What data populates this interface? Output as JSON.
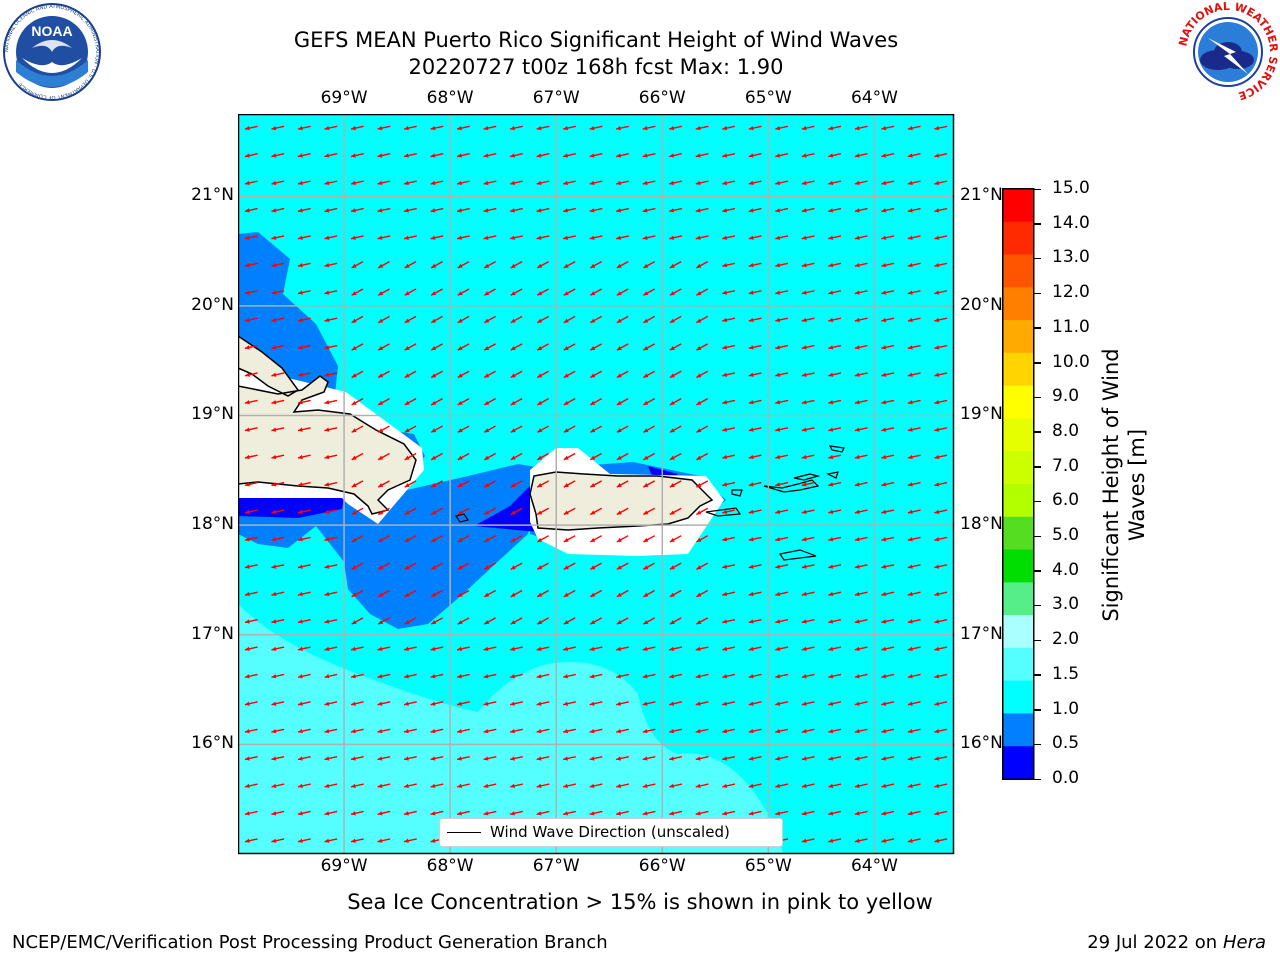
{
  "title": {
    "line1": "GEFS MEAN Puerto Rico Significant Height of Wind Waves",
    "line2": "20220727 t00z 168h fcst   Max: 1.90"
  },
  "logos": {
    "noaa_text": "NOAA",
    "noaa_ring_text": "NATIONAL OCEANIC AND ATMOSPHERIC ADMINISTRATION · U.S. DEPARTMENT OF COMMERCE",
    "nws_ring_text": "NATIONAL WEATHER SERVICE"
  },
  "map": {
    "lon_ticks": [
      "69°W",
      "68°W",
      "67°W",
      "66°W",
      "65°W",
      "64°W"
    ],
    "lat_ticks": [
      "21°N",
      "20°N",
      "19°N",
      "18°N",
      "17°N",
      "16°N"
    ],
    "lon_range": [
      -70,
      -63.25
    ],
    "lat_range": [
      15.0,
      21.75
    ],
    "grid": true,
    "arrow_direction": "pointing west-southwest (easterly wind waves)",
    "arrow_color": "#ff0000",
    "land_color": "#efeddc",
    "max_value": 1.9
  },
  "legend": {
    "label": "Wind Wave Direction (unscaled)",
    "placement": "bottom-center"
  },
  "colorbar": {
    "label": "Significant Height of Wind Waves [m]",
    "label_line1": "Significant Height of Wind",
    "label_line2": "Waves [m]",
    "ticks": [
      "15.0",
      "14.0",
      "13.0",
      "12.0",
      "11.0",
      "10.0",
      "9.0",
      "8.0",
      "7.0",
      "6.0",
      "5.0",
      "4.0",
      "3.0",
      "2.0",
      "1.5",
      "1.0",
      "0.5",
      "0.0"
    ],
    "colors_top_to_bottom": [
      "#ff0000",
      "#ff2a00",
      "#ff5500",
      "#ff8000",
      "#ffaa00",
      "#ffd400",
      "#ffff00",
      "#e6ff00",
      "#ccff00",
      "#b3ff00",
      "#55dd22",
      "#00dd00",
      "#55ee88",
      "#aaffff",
      "#55ffff",
      "#00ffff",
      "#0080ff",
      "#0000ff"
    ]
  },
  "ice_note": "Sea Ice Concentration > 15% is shown in pink to yellow",
  "footer": {
    "left": "NCEP/EMC/Verification Post Processing Product Generation Branch",
    "right_date": "29 Jul 2022 on ",
    "right_machine": "Hera"
  }
}
